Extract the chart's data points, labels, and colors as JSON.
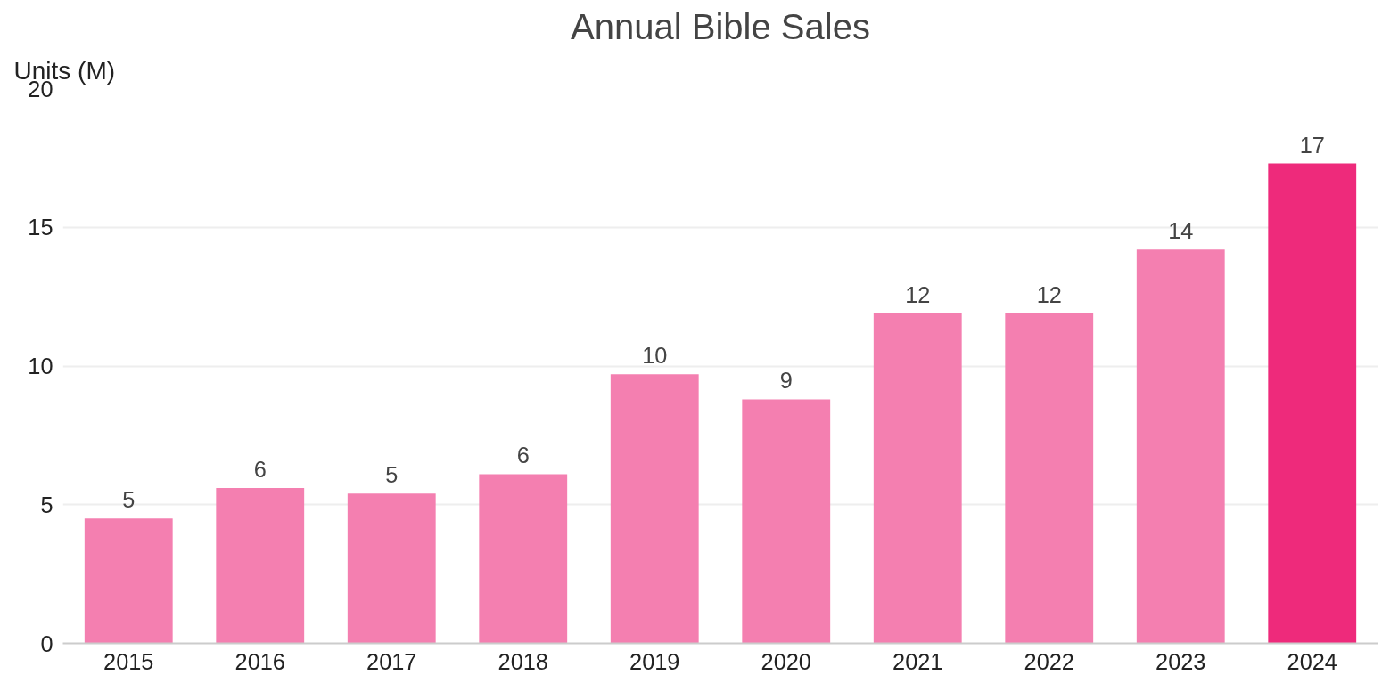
{
  "chart_data": {
    "type": "bar",
    "title": "Annual Bible Sales",
    "ylabel": "Units (M)",
    "categories": [
      "2015",
      "2016",
      "2017",
      "2018",
      "2019",
      "2020",
      "2021",
      "2022",
      "2023",
      "2024"
    ],
    "values": [
      4.5,
      5.6,
      5.4,
      6.1,
      9.7,
      8.8,
      11.9,
      11.9,
      14.2,
      17.3
    ],
    "colors": [
      "#f47fb0",
      "#f47fb0",
      "#f47fb0",
      "#f47fb0",
      "#f47fb0",
      "#f47fb0",
      "#f47fb0",
      "#f47fb0",
      "#f47fb0",
      "#ee2a7b"
    ],
    "value_labels": [
      "5",
      "6",
      "5",
      "6",
      "10",
      "9",
      "12",
      "12",
      "14",
      "17"
    ],
    "ylim": [
      0,
      20
    ],
    "yticks": [
      0,
      5,
      10,
      15,
      20
    ],
    "grid": "y"
  }
}
